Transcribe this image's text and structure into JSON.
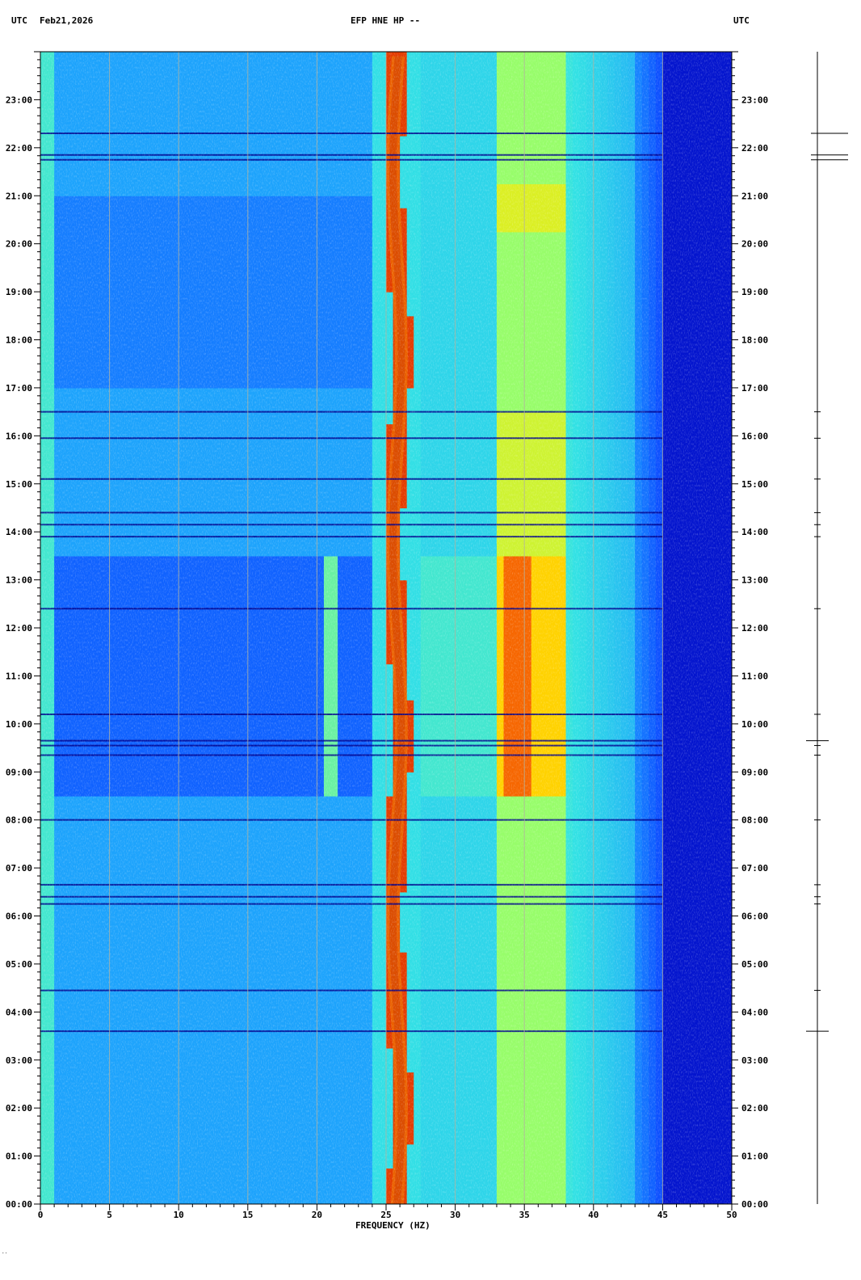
{
  "header": {
    "left_zone": "UTC",
    "date": "Feb21,2026",
    "station": "EFP HNE HP --",
    "right_zone": "UTC"
  },
  "footer_mark": "..",
  "chart_data": {
    "type": "heatmap",
    "title": "EFP HNE HP --",
    "xlabel": "FREQUENCY (HZ)",
    "ylabel": "",
    "xlim": [
      0,
      50
    ],
    "ylim_hours": [
      0,
      24
    ],
    "x_ticks": [
      "0",
      "5",
      "10",
      "15",
      "20",
      "25",
      "30",
      "35",
      "40",
      "45",
      "50"
    ],
    "y_ticks": [
      "00:00",
      "01:00",
      "02:00",
      "03:00",
      "04:00",
      "05:00",
      "06:00",
      "07:00",
      "08:00",
      "09:00",
      "10:00",
      "11:00",
      "12:00",
      "13:00",
      "14:00",
      "15:00",
      "16:00",
      "17:00",
      "18:00",
      "19:00",
      "20:00",
      "21:00",
      "22:00",
      "23:00"
    ],
    "grid": true,
    "colormap": [
      "#0000b4",
      "#0a3cff",
      "#1a9cff",
      "#33e3e3",
      "#a0ff60",
      "#ffe500",
      "#ff7a00",
      "#c80000"
    ],
    "features": {
      "persistent_line_hz": 25.8,
      "broad_band_hz": [
        33,
        38
      ],
      "spectrum_cutoff_hz": 45
    },
    "side_trace": {
      "event_times_hours": [
        22.3,
        21.85,
        21.75,
        16.5,
        15.95,
        15.1,
        14.4,
        14.15,
        13.9,
        12.4,
        10.2,
        9.65,
        9.55,
        9.35,
        8.0,
        6.65,
        6.4,
        6.25,
        4.45,
        3.6
      ],
      "strong_event_times_hours": [
        22.3,
        21.85,
        21.75,
        9.65,
        3.6
      ]
    }
  }
}
